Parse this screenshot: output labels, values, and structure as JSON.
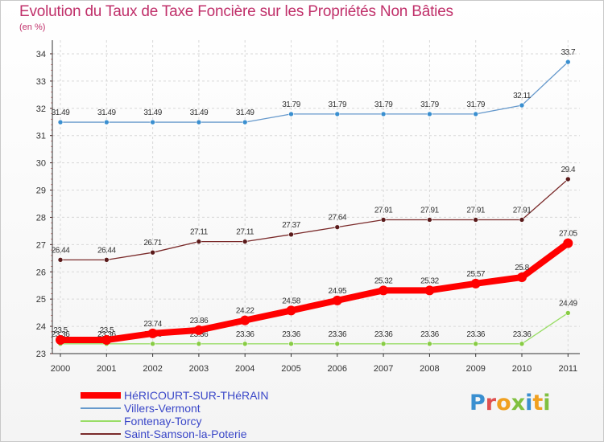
{
  "title": "Evolution du Taux de Taxe Foncière sur les Propriétés Non Bâties",
  "unit": "(en %)",
  "logo": {
    "text": "Proxiti",
    "colors": [
      "#3a8fd0",
      "#e05050",
      "#f0a020",
      "#80c040",
      "#3a8fd0",
      "#f0a020",
      "#80c040"
    ]
  },
  "chart_data": {
    "type": "line",
    "x": [
      "2000",
      "2001",
      "2002",
      "2003",
      "2004",
      "2005",
      "2006",
      "2007",
      "2008",
      "2009",
      "2010",
      "2011"
    ],
    "ylim": [
      23,
      34.5
    ],
    "yticks": [
      23,
      24,
      25,
      26,
      27,
      28,
      29,
      30,
      31,
      32,
      33,
      34
    ],
    "grid": true,
    "legend": "bottom-left",
    "series": [
      {
        "name": "HéRICOURT-SUR-THéRAIN",
        "color": "#ff0000",
        "values": [
          23.5,
          23.5,
          23.74,
          23.86,
          24.22,
          24.58,
          24.95,
          25.32,
          25.32,
          25.57,
          25.8,
          27.05
        ]
      },
      {
        "name": "Villers-Vermont",
        "color": "#6699cc",
        "values": [
          31.49,
          31.49,
          31.49,
          31.49,
          31.49,
          31.79,
          31.79,
          31.79,
          31.79,
          31.79,
          32.11,
          33.7
        ]
      },
      {
        "name": "Fontenay-Torcy",
        "color": "#99dd66",
        "values": [
          23.36,
          23.36,
          23.36,
          23.36,
          23.36,
          23.36,
          23.36,
          23.36,
          23.36,
          23.36,
          23.36,
          24.49
        ]
      },
      {
        "name": "Saint-Samson-la-Poterie",
        "color": "#7a2a2a",
        "values": [
          26.44,
          26.44,
          26.71,
          27.11,
          27.11,
          27.37,
          27.64,
          27.91,
          27.91,
          27.91,
          27.91,
          29.4
        ]
      }
    ]
  }
}
